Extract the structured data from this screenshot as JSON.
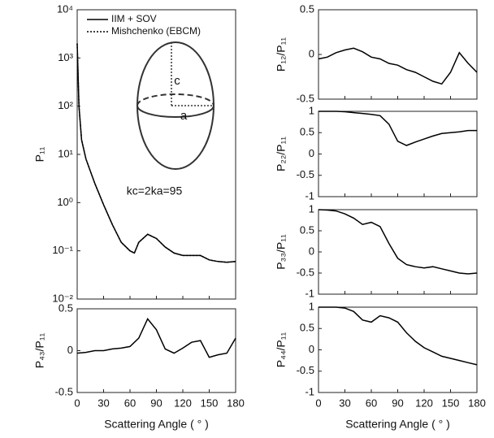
{
  "chart_data": [
    {
      "type": "line",
      "ylabel": "P₁₁",
      "yscale": "log",
      "xlim": [
        0,
        180
      ],
      "xticks": [
        0,
        30,
        60,
        90,
        120,
        150,
        180
      ],
      "ylim": [
        0.01,
        10000
      ],
      "yticks": [
        {
          "value": 0.01,
          "label": "10⁻²"
        },
        {
          "value": 0.1,
          "label": "10⁻¹"
        },
        {
          "value": 1,
          "label": "10⁰"
        },
        {
          "value": 10,
          "label": "10¹"
        },
        {
          "value": 100,
          "label": "10²"
        },
        {
          "value": 1000,
          "label": "10³"
        },
        {
          "value": 10000,
          "label": "10⁴"
        }
      ],
      "x": [
        0,
        2,
        5,
        10,
        20,
        30,
        40,
        50,
        60,
        65,
        70,
        80,
        90,
        100,
        110,
        120,
        130,
        140,
        150,
        160,
        170,
        180
      ],
      "series": [
        {
          "name": "IIM + SOV",
          "color": "#000000",
          "dash": "solid",
          "values": [
            2000,
            100,
            20,
            8,
            2.5,
            0.9,
            0.35,
            0.15,
            0.1,
            0.09,
            0.15,
            0.22,
            0.18,
            0.12,
            0.09,
            0.08,
            0.08,
            0.08,
            0.065,
            0.06,
            0.058,
            0.06
          ]
        },
        {
          "name": "Mishchenko (EBCM)",
          "color": "#000000",
          "dash": "dotted",
          "values": [
            2000,
            100,
            20,
            8,
            2.5,
            0.9,
            0.35,
            0.15,
            0.1,
            0.09,
            0.15,
            0.22,
            0.18,
            0.12,
            0.09,
            0.08,
            0.08,
            0.08,
            0.065,
            0.06,
            0.058,
            0.06
          ]
        }
      ],
      "annotations": [
        "kc=2ka=95",
        "c",
        "a"
      ]
    },
    {
      "type": "line",
      "ylabel": "P₄₃/P₁₁",
      "xlabel": "Scattering Angle ( ° )",
      "xlim": [
        0,
        180
      ],
      "xticks": [
        0,
        30,
        60,
        90,
        120,
        150,
        180
      ],
      "ylim": [
        -0.5,
        0.5
      ],
      "yticks": [
        -0.5,
        0,
        0.5
      ],
      "x": [
        0,
        10,
        20,
        30,
        40,
        50,
        60,
        70,
        80,
        90,
        100,
        110,
        120,
        130,
        140,
        150,
        160,
        170,
        180
      ],
      "color": "#000000",
      "values": [
        -0.03,
        -0.02,
        0,
        0,
        0.02,
        0.03,
        0.05,
        0.15,
        0.38,
        0.25,
        0.02,
        -0.03,
        0.03,
        0.1,
        0.12,
        -0.08,
        -0.05,
        -0.03,
        0.15
      ]
    },
    {
      "type": "line",
      "ylabel": "P₁₂/P₁₁",
      "xlim": [
        0,
        180
      ],
      "xticks": [
        0,
        30,
        60,
        90,
        120,
        150,
        180
      ],
      "ylim": [
        -0.5,
        0.5
      ],
      "yticks": [
        -0.5,
        0,
        0.5
      ],
      "x": [
        0,
        10,
        20,
        30,
        40,
        50,
        60,
        70,
        80,
        90,
        100,
        110,
        120,
        130,
        140,
        150,
        160,
        170,
        180
      ],
      "color": "#000000",
      "values": [
        -0.05,
        -0.03,
        0.02,
        0.05,
        0.07,
        0.03,
        -0.03,
        -0.05,
        -0.1,
        -0.12,
        -0.17,
        -0.2,
        -0.25,
        -0.3,
        -0.33,
        -0.2,
        0.02,
        -0.1,
        -0.2
      ]
    },
    {
      "type": "line",
      "ylabel": "P₂₂/P₁₁",
      "xlim": [
        0,
        180
      ],
      "xticks": [
        0,
        30,
        60,
        90,
        120,
        150,
        180
      ],
      "ylim": [
        -1,
        1
      ],
      "yticks": [
        -1,
        -0.5,
        0,
        0.5,
        1
      ],
      "x": [
        0,
        10,
        20,
        30,
        40,
        50,
        60,
        70,
        80,
        90,
        100,
        110,
        120,
        130,
        140,
        150,
        160,
        170,
        180
      ],
      "color": "#000000",
      "values": [
        1,
        1,
        1,
        0.99,
        0.97,
        0.95,
        0.93,
        0.9,
        0.7,
        0.3,
        0.2,
        0.28,
        0.35,
        0.42,
        0.48,
        0.5,
        0.52,
        0.55,
        0.55
      ]
    },
    {
      "type": "line",
      "ylabel": "P₃₃/P₁₁",
      "xlim": [
        0,
        180
      ],
      "xticks": [
        0,
        30,
        60,
        90,
        120,
        150,
        180
      ],
      "ylim": [
        -1,
        1
      ],
      "yticks": [
        -1,
        -0.5,
        0,
        0.5,
        1
      ],
      "x": [
        0,
        10,
        20,
        30,
        40,
        50,
        60,
        70,
        80,
        90,
        100,
        110,
        120,
        130,
        140,
        150,
        160,
        170,
        180
      ],
      "color": "#000000",
      "values": [
        1,
        0.99,
        0.97,
        0.9,
        0.8,
        0.65,
        0.7,
        0.6,
        0.2,
        -0.15,
        -0.3,
        -0.35,
        -0.38,
        -0.35,
        -0.4,
        -0.45,
        -0.5,
        -0.52,
        -0.5
      ]
    },
    {
      "type": "line",
      "ylabel": "P₄₄/P₁₁",
      "xlabel": "Scattering Angle ( ° )",
      "xlim": [
        0,
        180
      ],
      "xticks": [
        0,
        30,
        60,
        90,
        120,
        150,
        180
      ],
      "ylim": [
        -1,
        1
      ],
      "yticks": [
        -1,
        -0.5,
        0,
        0.5,
        1
      ],
      "x": [
        0,
        10,
        20,
        30,
        40,
        50,
        60,
        70,
        80,
        90,
        100,
        110,
        120,
        130,
        140,
        150,
        160,
        170,
        180
      ],
      "color": "#000000",
      "values": [
        1,
        1,
        1,
        0.98,
        0.9,
        0.7,
        0.65,
        0.8,
        0.75,
        0.65,
        0.4,
        0.2,
        0.05,
        -0.05,
        -0.15,
        -0.2,
        -0.25,
        -0.3,
        -0.35
      ]
    }
  ]
}
